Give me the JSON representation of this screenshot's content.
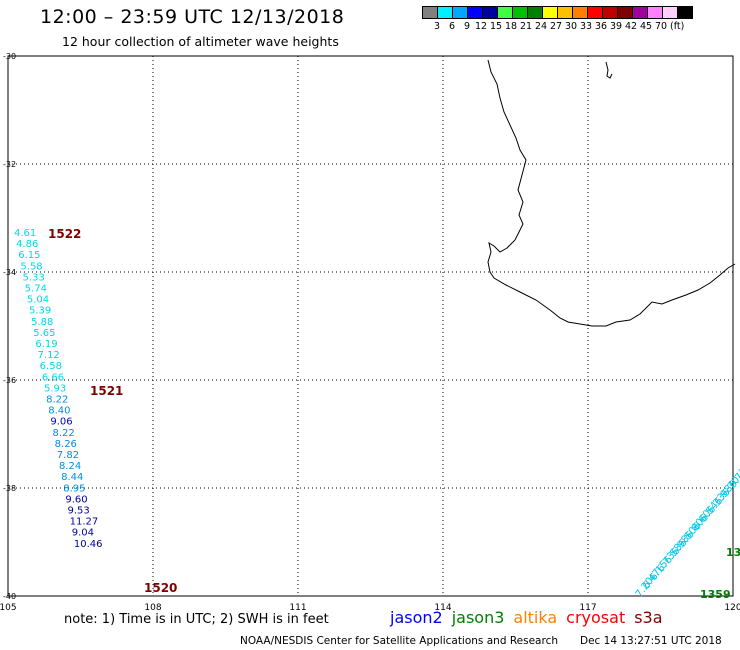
{
  "header": {
    "title": "12:00 – 23:59 UTC 12/13/2018",
    "subtitle": "12 hour collection of altimeter wave heights"
  },
  "scale": {
    "colors": [
      "#808080",
      "#00f0ff",
      "#00a8ff",
      "#0000ff",
      "#0000a0",
      "#40ff40",
      "#00c000",
      "#008000",
      "#ffff00",
      "#ffc000",
      "#ff8000",
      "#ff0000",
      "#c00000",
      "#800000",
      "#a000a0",
      "#ff80ff",
      "#ffd0ff",
      "#000000"
    ],
    "labels": [
      "3",
      "6",
      "9",
      "12",
      "15",
      "18",
      "21",
      "24",
      "27",
      "30",
      "33",
      "36",
      "39",
      "42",
      "45",
      "70",
      "(ft)"
    ]
  },
  "axes": {
    "lon_ticks": [
      "105",
      "108",
      "111",
      "114",
      "117",
      "120"
    ],
    "lat_ticks": [
      "-30",
      "-32",
      "-34",
      "-36",
      "-38",
      "-40"
    ]
  },
  "tracks": [
    {
      "pass_label": "1522",
      "label_color": "#800000",
      "points": [
        {
          "v": "4.61",
          "c": "#00d8e8"
        },
        {
          "v": "4.86",
          "c": "#00d8e8"
        },
        {
          "v": "6.15",
          "c": "#00d8e8"
        },
        {
          "v": "5.58",
          "c": "#00d8e8"
        },
        {
          "v": "5.33",
          "c": "#00d8e8"
        },
        {
          "v": "5.74",
          "c": "#00d8e8"
        },
        {
          "v": "5.04",
          "c": "#00d8e8"
        },
        {
          "v": "5.39",
          "c": "#00d8e8"
        },
        {
          "v": "5.88",
          "c": "#00d8e8"
        },
        {
          "v": "5.65",
          "c": "#00d8e8"
        },
        {
          "v": "6.19",
          "c": "#00d8e8"
        },
        {
          "v": "7.12",
          "c": "#00d8e8"
        }
      ]
    },
    {
      "pass_label": "1521",
      "label_color": "#800000",
      "points": [
        {
          "v": "6.58",
          "c": "#00d8e8"
        },
        {
          "v": "6.66",
          "c": "#00d8e8"
        },
        {
          "v": "5.93",
          "c": "#00d8e8"
        },
        {
          "v": "8.22",
          "c": "#0090e0"
        },
        {
          "v": "8.40",
          "c": "#0090e0"
        },
        {
          "v": "9.06",
          "c": "#0000c0"
        },
        {
          "v": "8.22",
          "c": "#0090e0"
        },
        {
          "v": "8.26",
          "c": "#0090e0"
        },
        {
          "v": "7.82",
          "c": "#0090e0"
        },
        {
          "v": "8.24",
          "c": "#0090e0"
        },
        {
          "v": "8.44",
          "c": "#0090e0"
        },
        {
          "v": "8.95",
          "c": "#0090e0"
        },
        {
          "v": "9.60",
          "c": "#0000a0"
        },
        {
          "v": "9.53",
          "c": "#0000a0"
        },
        {
          "v": "11.27",
          "c": "#0000a0"
        },
        {
          "v": "9.04",
          "c": "#0000a0"
        },
        {
          "v": "10.46",
          "c": "#0000a0"
        }
      ]
    },
    {
      "pass_label": "1520",
      "label_color": "#800000",
      "points": []
    },
    {
      "pass_label": "1359",
      "label_color": "#008000",
      "points": [
        {
          "v": "7.20",
          "c": "#00c8e8"
        },
        {
          "v": "6.47",
          "c": "#00c8e8"
        },
        {
          "v": "6.15",
          "c": "#00c8e8"
        },
        {
          "v": "6.73",
          "c": "#00c8e8"
        },
        {
          "v": "6.58",
          "c": "#00c8e8"
        },
        {
          "v": "6.98",
          "c": "#00c8e8"
        },
        {
          "v": "6.50",
          "c": "#00c8e8"
        },
        {
          "v": "6.80",
          "c": "#00c8e8"
        },
        {
          "v": "6.60",
          "c": "#00c8e8"
        },
        {
          "v": "6.54",
          "c": "#00c8e8"
        },
        {
          "v": "6.33",
          "c": "#00c8e8"
        },
        {
          "v": "6.98",
          "c": "#00c8e8"
        },
        {
          "v": "6.70",
          "c": "#00c8e8"
        },
        {
          "v": "6.73",
          "c": "#00c8e8"
        }
      ]
    },
    {
      "pass_label": "13",
      "label_color": "#008000",
      "points": []
    }
  ],
  "legend": {
    "note": "note:  1) Time is in UTC;  2) SWH is in feet",
    "satellites": [
      {
        "name": "jason2",
        "color": "#0000ff"
      },
      {
        "name": "jason3",
        "color": "#008000"
      },
      {
        "name": "altika",
        "color": "#ff8000"
      },
      {
        "name": "cryosat",
        "color": "#ff0000"
      },
      {
        "name": "s3a",
        "color": "#800000"
      }
    ]
  },
  "footer": {
    "credit": "NOAA/NESDIS Center for Satellite Applications and Research",
    "generated": "Dec 14 13:27:51 UTC 2018"
  }
}
